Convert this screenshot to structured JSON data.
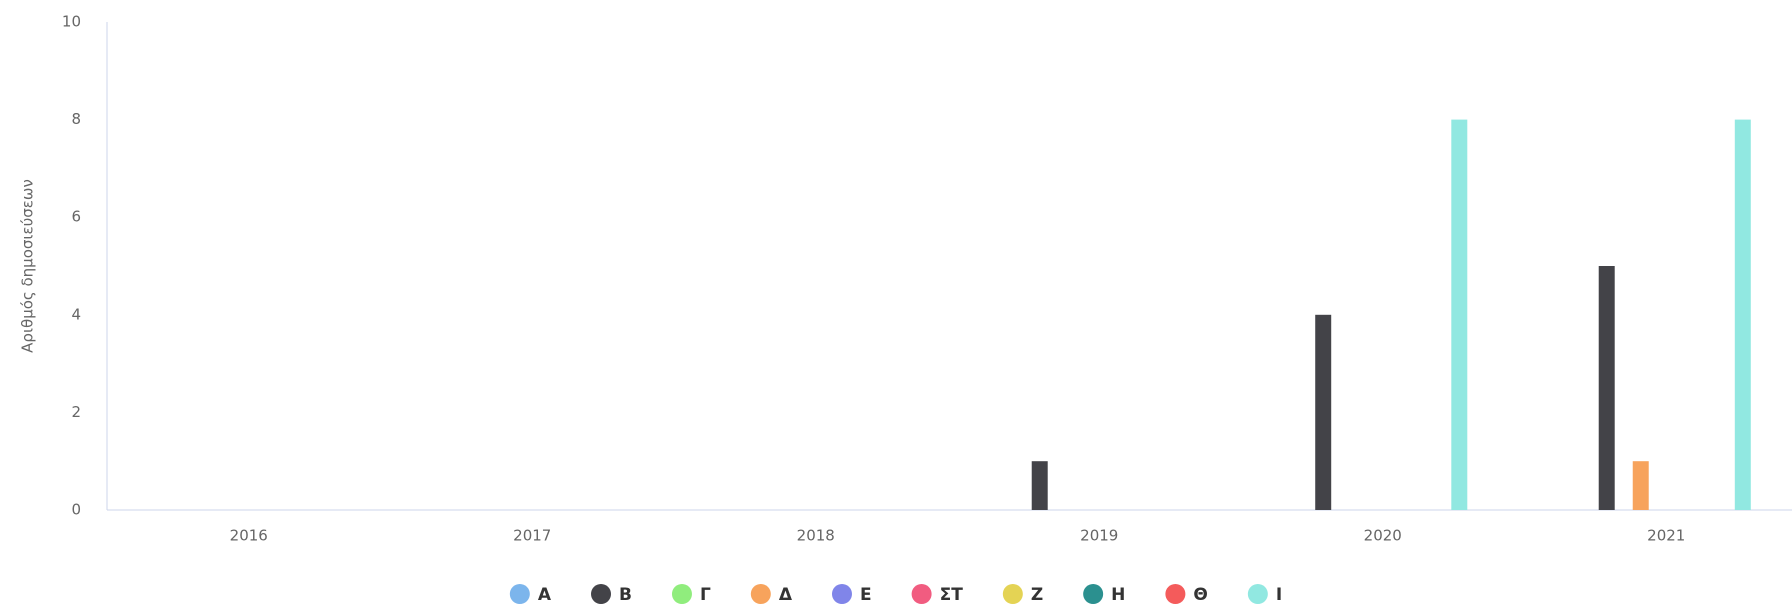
{
  "chart_data": {
    "type": "bar",
    "y_label": "Αριθμός δημοσιεύσεων",
    "categories": [
      "2016",
      "2017",
      "2018",
      "2019",
      "2020",
      "2021"
    ],
    "series": [
      {
        "name": "Α",
        "color": "#7cb5ec",
        "values": [
          0,
          0,
          0,
          0,
          0,
          0
        ]
      },
      {
        "name": "Β",
        "color": "#434348",
        "values": [
          0,
          0,
          0,
          1,
          4,
          5
        ]
      },
      {
        "name": "Γ",
        "color": "#90ed7d",
        "values": [
          0,
          0,
          0,
          0,
          0,
          0
        ]
      },
      {
        "name": "Δ",
        "color": "#f7a35c",
        "values": [
          0,
          0,
          0,
          0,
          0,
          1
        ]
      },
      {
        "name": "Ε",
        "color": "#8085e9",
        "values": [
          0,
          0,
          0,
          0,
          0,
          0
        ]
      },
      {
        "name": "ΣΤ",
        "color": "#f15c80",
        "values": [
          0,
          0,
          0,
          0,
          0,
          0
        ]
      },
      {
        "name": "Ζ",
        "color": "#e4d354",
        "values": [
          0,
          0,
          0,
          0,
          0,
          0
        ]
      },
      {
        "name": "Η",
        "color": "#2b908f",
        "values": [
          0,
          0,
          0,
          0,
          0,
          0
        ]
      },
      {
        "name": "Θ",
        "color": "#f45b5b",
        "values": [
          0,
          0,
          0,
          0,
          0,
          0
        ]
      },
      {
        "name": "Ι",
        "color": "#91e8e1",
        "values": [
          0,
          0,
          0,
          0,
          8,
          8
        ]
      }
    ],
    "ylim": [
      0,
      10
    ],
    "yticks": [
      0,
      2,
      4,
      6,
      8,
      10
    ],
    "grid": false,
    "legend": "bottom"
  }
}
